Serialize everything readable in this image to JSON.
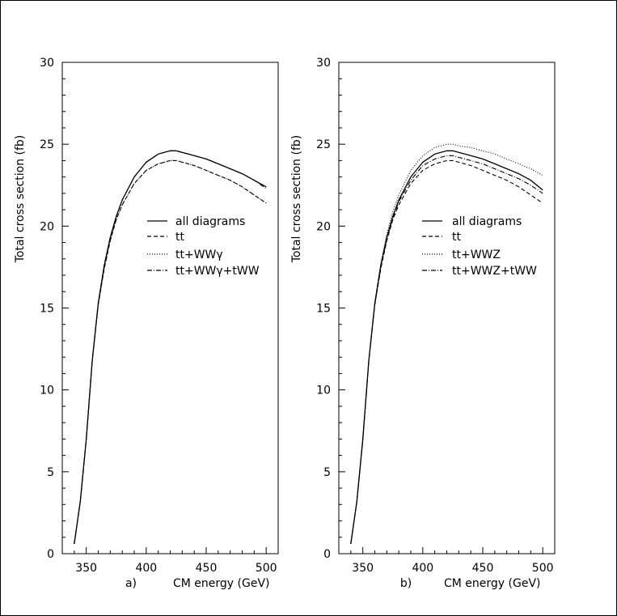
{
  "chart_data": [
    {
      "type": "line",
      "panel_label": "a)",
      "xlabel": "CM energy (GeV)",
      "ylabel": "Total cross section (fb)",
      "xlim": [
        330,
        510
      ],
      "ylim": [
        0,
        30
      ],
      "xticks": [
        "350",
        "400",
        "450",
        "500"
      ],
      "yticks": [
        "0",
        "5",
        "10",
        "15",
        "20",
        "25",
        "30"
      ],
      "grid": false,
      "legend_position": "right",
      "series": [
        {
          "name": "all diagrams",
          "style": "solid",
          "x": [
            340,
            345,
            350,
            355,
            360,
            365,
            370,
            375,
            380,
            390,
            400,
            410,
            420,
            425,
            430,
            440,
            450,
            460,
            470,
            480,
            490,
            500
          ],
          "y": [
            0.6,
            3.2,
            7.0,
            11.8,
            15.3,
            17.6,
            19.3,
            20.6,
            21.6,
            23.0,
            23.9,
            24.4,
            24.6,
            24.6,
            24.5,
            24.3,
            24.1,
            23.8,
            23.5,
            23.2,
            22.8,
            22.4
          ]
        },
        {
          "name": "tt",
          "style": "dashed",
          "x": [
            340,
            345,
            350,
            355,
            360,
            365,
            370,
            375,
            380,
            390,
            400,
            410,
            420,
            425,
            430,
            440,
            450,
            460,
            470,
            480,
            490,
            500
          ],
          "y": [
            0.6,
            3.2,
            7.0,
            11.8,
            15.2,
            17.4,
            19.1,
            20.4,
            21.3,
            22.6,
            23.4,
            23.8,
            24.0,
            24.0,
            23.9,
            23.7,
            23.4,
            23.1,
            22.8,
            22.4,
            21.9,
            21.4
          ]
        },
        {
          "name": "tt+WWγ",
          "style": "dotted",
          "x": [
            340,
            345,
            350,
            355,
            360,
            365,
            370,
            375,
            380,
            390,
            400,
            410,
            420,
            425,
            430,
            440,
            450,
            460,
            470,
            480,
            490,
            500
          ],
          "y": [
            0.6,
            3.2,
            7.0,
            11.8,
            15.2,
            17.4,
            19.1,
            20.4,
            21.3,
            22.6,
            23.4,
            23.8,
            24.0,
            24.0,
            23.9,
            23.7,
            23.4,
            23.1,
            22.8,
            22.4,
            21.9,
            21.4
          ]
        },
        {
          "name": "tt+WWγ+tWW",
          "style": "dashdot",
          "x": [
            340,
            345,
            350,
            355,
            360,
            365,
            370,
            375,
            380,
            390,
            400,
            410,
            420,
            425,
            430,
            440,
            450,
            460,
            470,
            480,
            490,
            500
          ],
          "y": [
            0.6,
            3.2,
            7.0,
            11.8,
            15.3,
            17.6,
            19.3,
            20.6,
            21.6,
            23.0,
            23.9,
            24.4,
            24.6,
            24.6,
            24.5,
            24.3,
            24.1,
            23.8,
            23.5,
            23.2,
            22.8,
            22.3
          ]
        }
      ]
    },
    {
      "type": "line",
      "panel_label": "b)",
      "xlabel": "CM energy (GeV)",
      "ylabel": "Total cross section (fb)",
      "xlim": [
        330,
        510
      ],
      "ylim": [
        0,
        30
      ],
      "xticks": [
        "350",
        "400",
        "450",
        "500"
      ],
      "yticks": [
        "0",
        "5",
        "10",
        "15",
        "20",
        "25",
        "30"
      ],
      "grid": false,
      "legend_position": "right",
      "series": [
        {
          "name": "all diagrams",
          "style": "solid",
          "x": [
            340,
            345,
            350,
            355,
            360,
            365,
            370,
            375,
            380,
            390,
            400,
            410,
            420,
            425,
            430,
            440,
            450,
            460,
            470,
            480,
            490,
            500
          ],
          "y": [
            0.6,
            3.2,
            7.0,
            11.8,
            15.3,
            17.6,
            19.3,
            20.6,
            21.6,
            23.0,
            23.9,
            24.4,
            24.6,
            24.6,
            24.5,
            24.3,
            24.1,
            23.8,
            23.5,
            23.2,
            22.8,
            22.2
          ]
        },
        {
          "name": "tt",
          "style": "dashed",
          "x": [
            340,
            345,
            350,
            355,
            360,
            365,
            370,
            375,
            380,
            390,
            400,
            410,
            420,
            425,
            430,
            440,
            450,
            460,
            470,
            480,
            490,
            500
          ],
          "y": [
            0.6,
            3.2,
            7.0,
            11.8,
            15.2,
            17.4,
            19.1,
            20.4,
            21.3,
            22.6,
            23.4,
            23.8,
            24.0,
            24.0,
            23.9,
            23.7,
            23.4,
            23.1,
            22.8,
            22.4,
            21.9,
            21.4
          ]
        },
        {
          "name": "tt+WWZ",
          "style": "dotted",
          "x": [
            340,
            345,
            350,
            355,
            360,
            365,
            370,
            375,
            380,
            390,
            400,
            410,
            420,
            425,
            430,
            440,
            450,
            460,
            470,
            480,
            490,
            500
          ],
          "y": [
            0.6,
            3.2,
            7.0,
            11.8,
            15.3,
            17.7,
            19.5,
            20.9,
            21.9,
            23.4,
            24.3,
            24.8,
            25.0,
            25.0,
            24.9,
            24.8,
            24.6,
            24.4,
            24.1,
            23.8,
            23.5,
            23.1
          ]
        },
        {
          "name": "tt+WWZ+tWW",
          "style": "dashdot",
          "x": [
            340,
            345,
            350,
            355,
            360,
            365,
            370,
            375,
            380,
            390,
            400,
            410,
            420,
            425,
            430,
            440,
            450,
            460,
            470,
            480,
            490,
            500
          ],
          "y": [
            0.6,
            3.2,
            7.0,
            11.8,
            15.2,
            17.5,
            19.2,
            20.5,
            21.5,
            22.8,
            23.7,
            24.1,
            24.3,
            24.3,
            24.2,
            24.0,
            23.8,
            23.5,
            23.2,
            22.9,
            22.5,
            22.0
          ]
        }
      ]
    }
  ]
}
